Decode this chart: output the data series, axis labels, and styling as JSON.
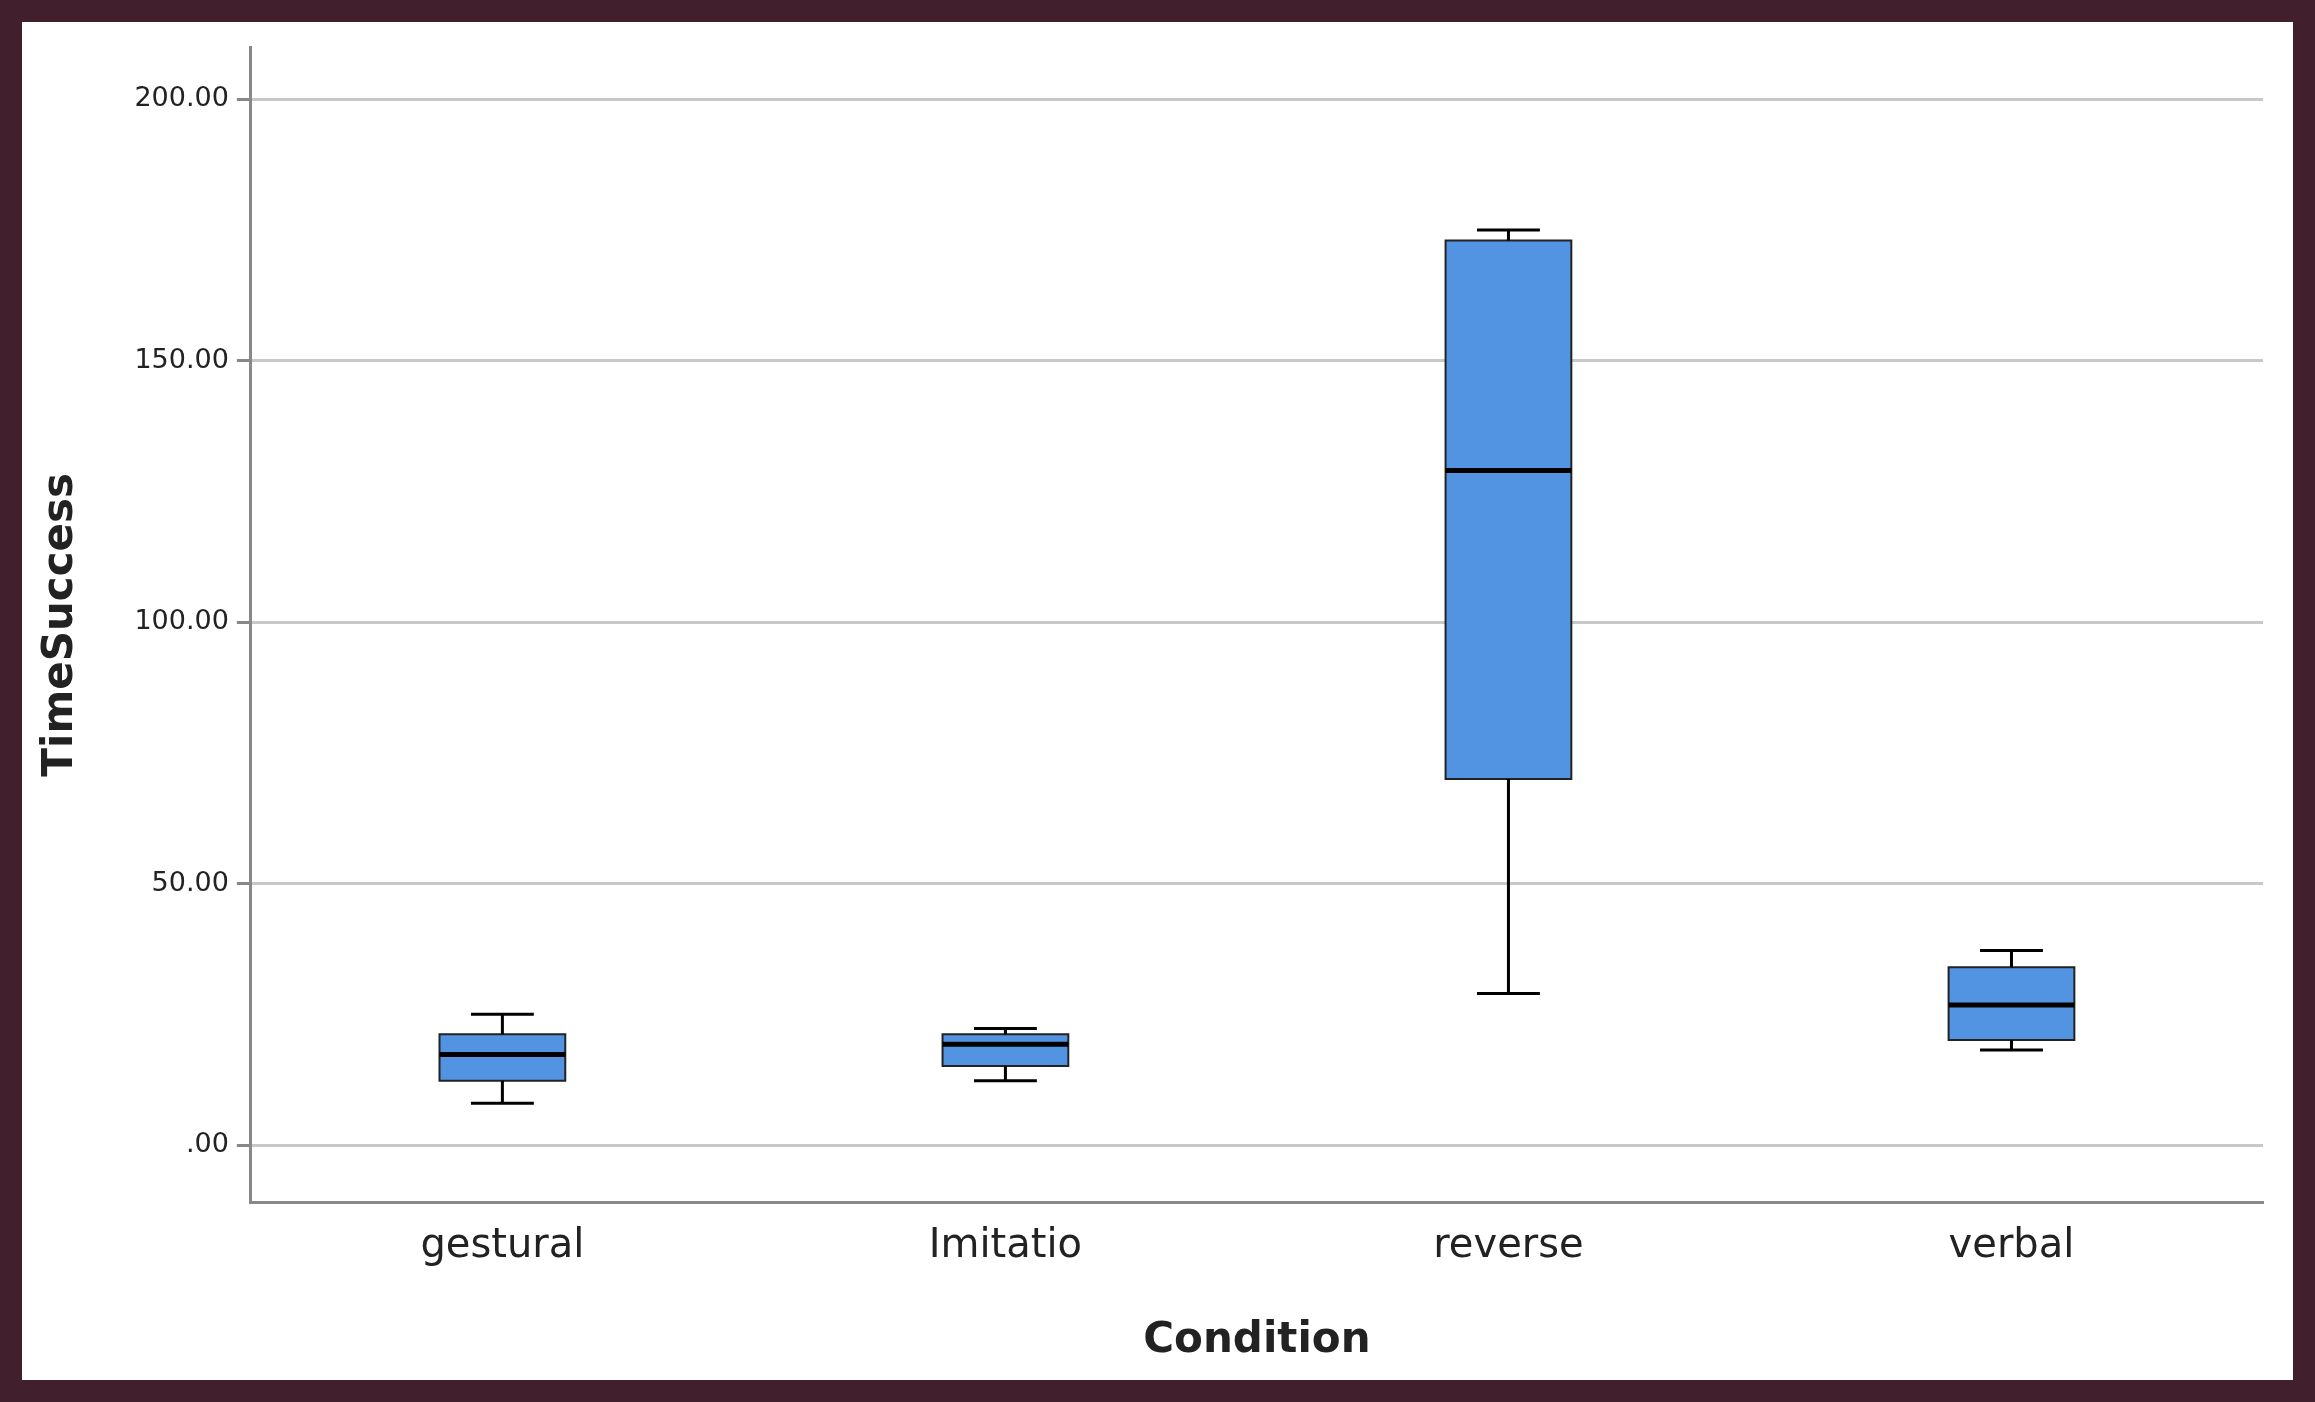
{
  "chart_data": {
    "type": "box",
    "xlabel": "Condition",
    "ylabel": "TimeSuccess",
    "categories": [
      "gestural",
      "Imitatio",
      "reverse",
      "verbal"
    ],
    "color": "#5294e2",
    "boxes": [
      {
        "low": 8,
        "q1": 12.3,
        "median": 17.3,
        "q3": 21.2,
        "high": 25
      },
      {
        "low": 12.3,
        "q1": 15.1,
        "median": 19.3,
        "q3": 21.2,
        "high": 22.3
      },
      {
        "low": 29,
        "q1": 70,
        "median": 129,
        "q3": 173,
        "high": 175
      },
      {
        "low": 18.2,
        "q1": 20.1,
        "median": 26.8,
        "q3": 34,
        "high": 37.2
      }
    ],
    "ylim": [
      -11,
      210
    ],
    "yticks": [
      {
        "value": 0,
        "label": ".00"
      },
      {
        "value": 50,
        "label": "50.00"
      },
      {
        "value": 100,
        "label": "100.00"
      },
      {
        "value": 150,
        "label": "150.00"
      },
      {
        "value": 200,
        "label": "200.00"
      }
    ],
    "grid": "y",
    "legend": false
  }
}
